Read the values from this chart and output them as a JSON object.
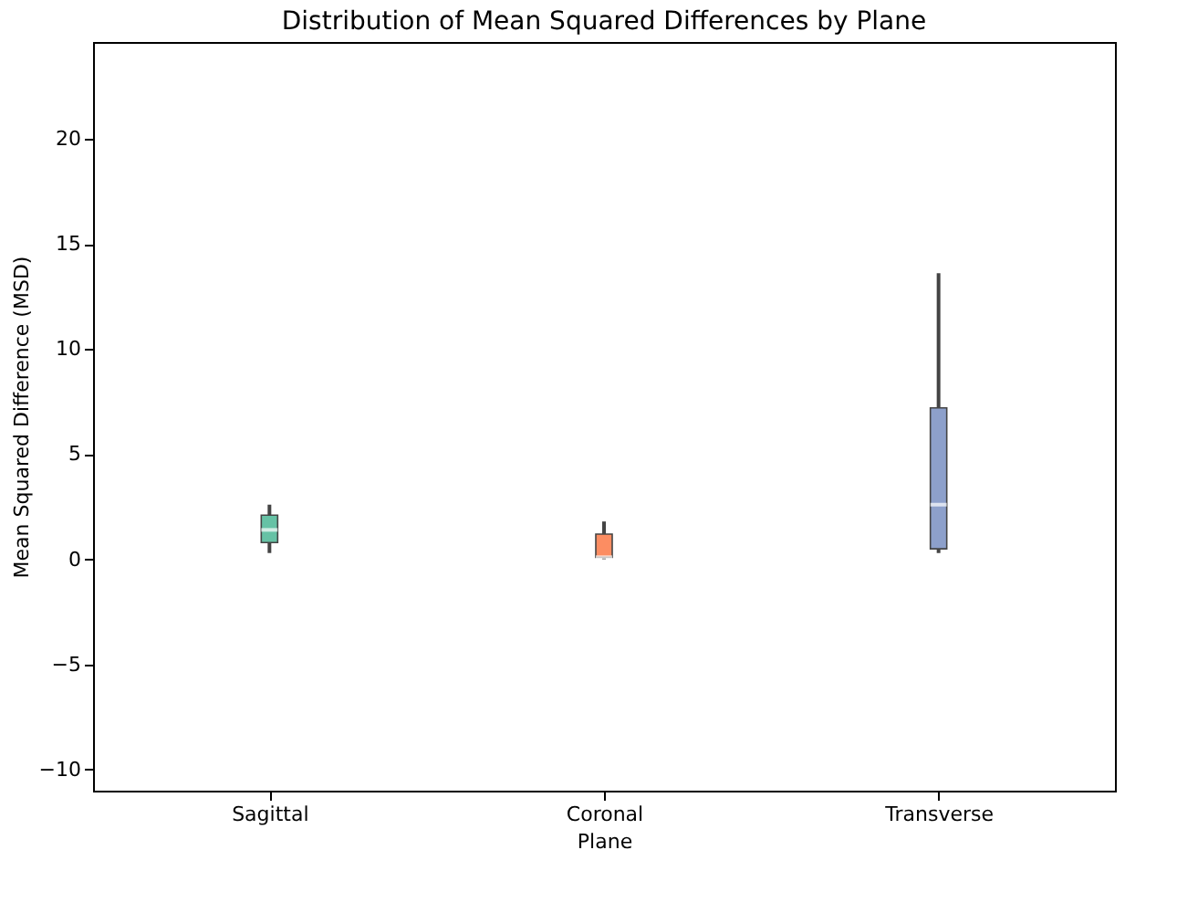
{
  "chart_data": {
    "type": "box",
    "title": "Distribution of Mean Squared Differences by Plane",
    "xlabel": "Plane",
    "ylabel": "Mean Squared Difference (MSD)",
    "categories": [
      "Sagittal",
      "Coronal",
      "Transverse"
    ],
    "colors": [
      "#66c2a5",
      "#fc8d62",
      "#8da0cb"
    ],
    "boxes": [
      {
        "low": 0.3,
        "q1": 0.8,
        "median": 1.4,
        "q3": 2.1,
        "high": 2.6
      },
      {
        "low": 0.0,
        "q1": 0.1,
        "median": 0.1,
        "q3": 1.2,
        "high": 1.8
      },
      {
        "low": 0.3,
        "q1": 0.5,
        "median": 2.6,
        "q3": 7.2,
        "high": 13.6
      }
    ],
    "ylim": [
      -11,
      24.6
    ],
    "yticks": [
      -10,
      -5,
      0,
      5,
      10,
      15,
      20
    ],
    "grid": false,
    "legend": false
  }
}
